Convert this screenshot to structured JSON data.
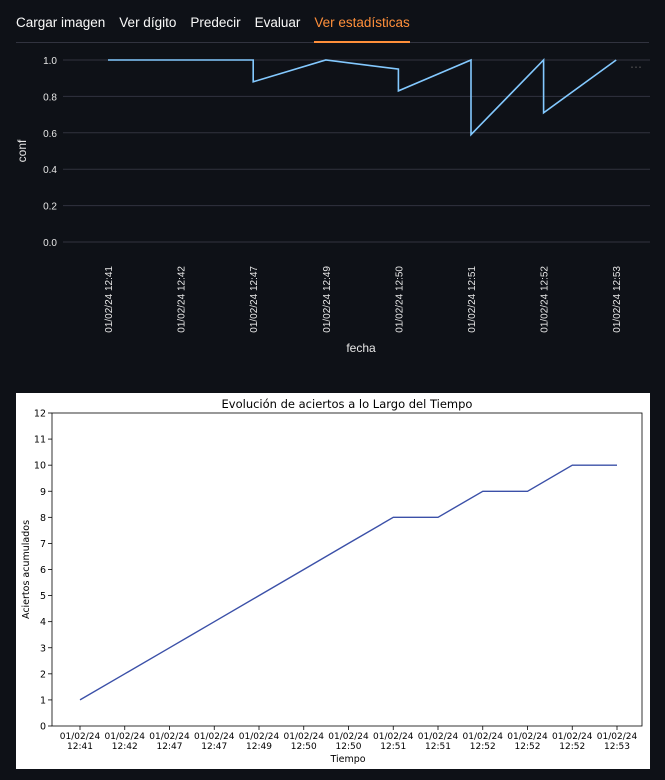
{
  "tabs": [
    {
      "label": "Cargar imagen",
      "active": false
    },
    {
      "label": "Ver dígito",
      "active": false
    },
    {
      "label": "Predecir",
      "active": false
    },
    {
      "label": "Evaluar",
      "active": false
    },
    {
      "label": "Ver estadísticas",
      "active": true
    }
  ],
  "colors": {
    "accent": "#ff8f3a",
    "background": "#0e1117",
    "line_confidence": "#83c9ff",
    "line_hits": "#3b50a8"
  },
  "chart_data": [
    {
      "type": "line",
      "title": "",
      "xlabel": "fecha",
      "ylabel": "conf",
      "ylim": [
        0,
        1
      ],
      "yticks": [
        "1.0",
        "0.8",
        "0.6",
        "0.4",
        "0.2",
        "0.0"
      ],
      "ytick_values": [
        1.0,
        0.8,
        0.6,
        0.4,
        0.2,
        0.0
      ],
      "x_tick_labels": [
        "01/02/24 12:41",
        "01/02/24 12:42",
        "01/02/24 12:47",
        "01/02/24 12:49",
        "01/02/24 12:50",
        "01/02/24 12:51",
        "01/02/24 12:52",
        "01/02/24 12:53"
      ],
      "series": [
        {
          "name": "conf",
          "x": [
            0,
            1,
            2,
            2,
            3,
            4,
            4,
            5,
            5,
            6,
            6,
            7
          ],
          "y": [
            1.0,
            1.0,
            1.0,
            0.88,
            1.0,
            0.95,
            0.83,
            1.0,
            0.59,
            1.0,
            0.71,
            1.0
          ]
        }
      ],
      "grid": true
    },
    {
      "type": "line",
      "title": "Evolución de aciertos a lo Largo del Tiempo",
      "xlabel": "Tiempo",
      "ylabel": "Aciertos acumulados",
      "ylim": [
        0,
        12
      ],
      "yticks": [
        "0",
        "1",
        "2",
        "3",
        "4",
        "5",
        "6",
        "7",
        "8",
        "9",
        "10",
        "11",
        "12"
      ],
      "categories": [
        [
          "01/02/24",
          "12:41"
        ],
        [
          "01/02/24",
          "12:42"
        ],
        [
          "01/02/24",
          "12:47"
        ],
        [
          "01/02/24",
          "12:47"
        ],
        [
          "01/02/24",
          "12:49"
        ],
        [
          "01/02/24",
          "12:50"
        ],
        [
          "01/02/24",
          "12:50"
        ],
        [
          "01/02/24",
          "12:51"
        ],
        [
          "01/02/24",
          "12:51"
        ],
        [
          "01/02/24",
          "12:52"
        ],
        [
          "01/02/24",
          "12:52"
        ],
        [
          "01/02/24",
          "12:52"
        ],
        [
          "01/02/24",
          "12:53"
        ]
      ],
      "series": [
        {
          "name": "Aciertos acumulados",
          "values": [
            1,
            2,
            3,
            4,
            5,
            6,
            7,
            8,
            8,
            9,
            9,
            10,
            10
          ]
        }
      ],
      "grid": false
    }
  ]
}
